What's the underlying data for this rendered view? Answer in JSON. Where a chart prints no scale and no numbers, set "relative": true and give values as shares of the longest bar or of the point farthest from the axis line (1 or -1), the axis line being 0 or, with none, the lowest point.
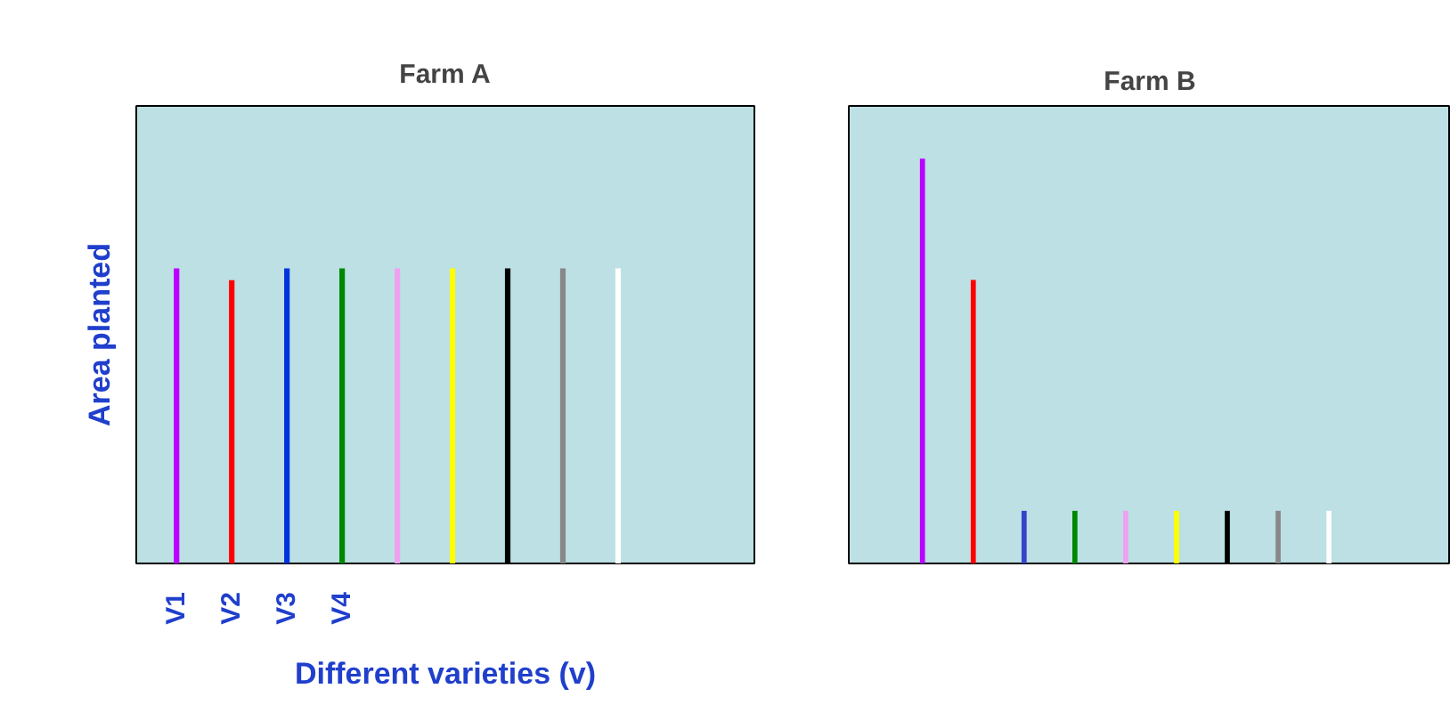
{
  "chart_data": [
    {
      "type": "bar",
      "relative": true,
      "title": "Farm A",
      "ylabel": "Area planted",
      "xlabel": "Different varieties (v)",
      "categories": [
        "V1",
        "V2",
        "V3",
        "V4",
        null,
        null,
        null,
        null,
        null
      ],
      "values": [
        1,
        0.96,
        1,
        1,
        1,
        1,
        1,
        1,
        1
      ],
      "colors": [
        "#bb00ff",
        "#ff0000",
        "#0033dd",
        "#008800",
        "#f0a0f0",
        "#ffff00",
        "#000000",
        "#888888",
        "#ffffff"
      ],
      "grid": false,
      "legend": false
    },
    {
      "type": "bar",
      "relative": true,
      "title": "Farm B",
      "categories": [
        null,
        null,
        null,
        null,
        null,
        null,
        null,
        null,
        null
      ],
      "values": [
        1,
        0.7,
        0.13,
        0.13,
        0.13,
        0.13,
        0.13,
        0.13,
        0.13
      ],
      "colors": [
        "#bb00ff",
        "#ff0000",
        "#3344cc",
        "#008800",
        "#f0a0f0",
        "#ffff00",
        "#000000",
        "#888888",
        "#ffffff"
      ],
      "grid": false,
      "legend": false
    }
  ]
}
